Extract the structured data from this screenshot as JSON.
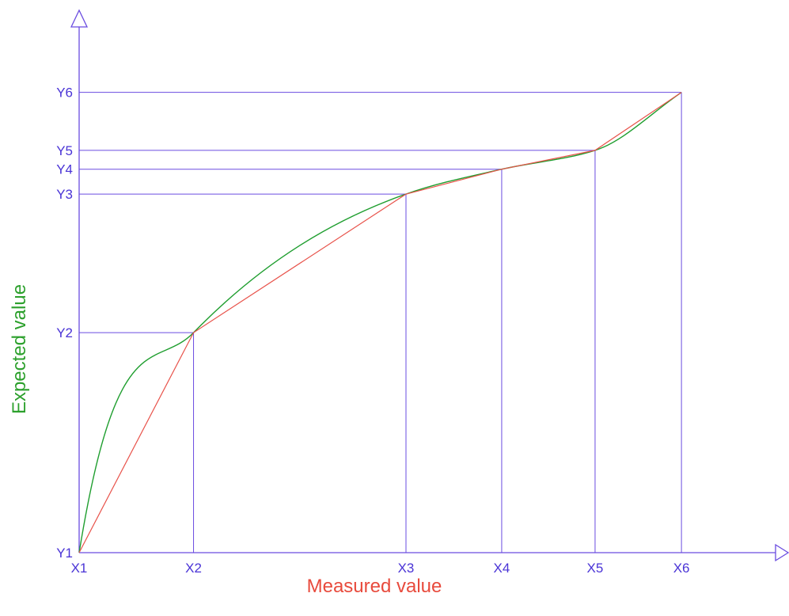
{
  "chart_data": {
    "type": "line",
    "xlabel": "Measured value",
    "ylabel": "Expected value",
    "x_ticks": [
      "X1",
      "X2",
      "X3",
      "X4",
      "X5",
      "X6"
    ],
    "y_ticks": [
      "Y1",
      "Y2",
      "Y3",
      "Y4",
      "Y5",
      "Y6"
    ],
    "x_values": [
      0,
      24.5,
      70.0,
      90.5,
      110.5,
      129.0
    ],
    "y_values": [
      0,
      47.8,
      77.9,
      83.3,
      87.4,
      100.0
    ],
    "xlim": [
      0,
      150
    ],
    "ylim": [
      0,
      118
    ],
    "series": [
      {
        "values": [
          0,
          47.8,
          77.9,
          83.3,
          87.4,
          100.0
        ],
        "style": "piecewise-linear",
        "color": "#e8524a"
      },
      {
        "values": [
          0,
          47.8,
          77.9,
          83.3,
          87.4,
          100.0
        ],
        "style": "smooth-curve",
        "color": "#1f9e2f"
      }
    ],
    "grid": false,
    "guide_lines": true,
    "colors": {
      "axes": "#6a4ce0",
      "xlabel": "#e84a3c",
      "ylabel": "#2ca02c"
    }
  }
}
